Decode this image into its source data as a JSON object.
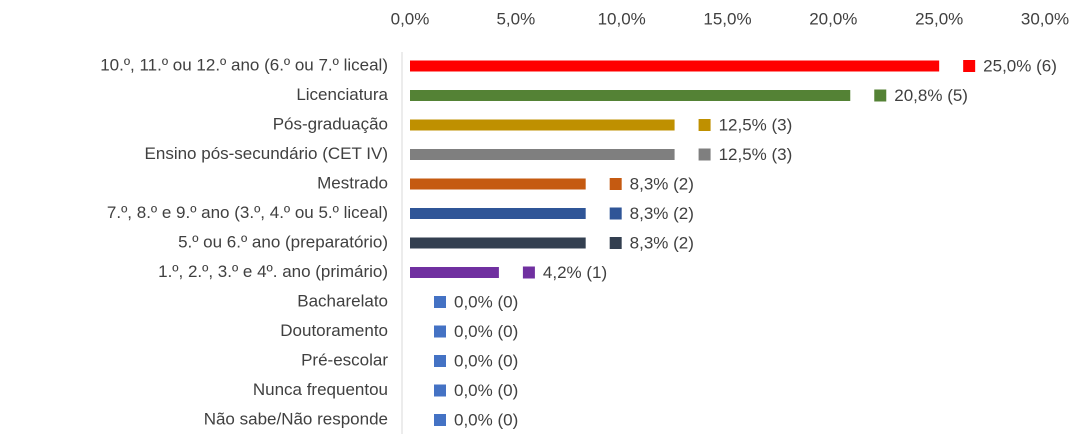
{
  "chart_data": {
    "type": "bar",
    "orientation": "horizontal",
    "categories": [
      "10.º, 11.º ou 12.º ano (6.º ou 7.º liceal)",
      "Licenciatura",
      "Pós-graduação",
      "Ensino pós-secundário (CET IV)",
      "Mestrado",
      "7.º, 8.º e 9.º ano (3.º, 4.º ou 5.º liceal)",
      "5.º ou 6.º ano (preparatório)",
      "1.º, 2.º, 3.º e 4º. ano (primário)",
      "Bacharelato",
      "Doutoramento",
      "Pré-escolar",
      "Nunca frequentou",
      "Não sabe/Não responde"
    ],
    "values": [
      25.0,
      20.8,
      12.5,
      12.5,
      8.3,
      8.3,
      8.3,
      4.2,
      0,
      0,
      0,
      0,
      0
    ],
    "value_labels": [
      "25,0% (6)",
      "20,8% (5)",
      "12,5% (3)",
      "12,5% (3)",
      "8,3% (2)",
      "8,3% (2)",
      "8,3% (2)",
      "4,2% (1)",
      "0,0% (0)",
      "0,0% (0)",
      "0,0% (0)",
      "0,0% (0)",
      "0,0% (0)"
    ],
    "colors": [
      "#ff0000",
      "#548235",
      "#bf9000",
      "#7f7f7f",
      "#c55a11",
      "#2f5597",
      "#333f50",
      "#7030a0",
      "#4472c4",
      "#4472c4",
      "#4472c4",
      "#4472c4",
      "#4472c4"
    ],
    "xlim": [
      0,
      30
    ],
    "xticks": [
      {
        "value": 0,
        "label": "0,0%"
      },
      {
        "value": 5,
        "label": "5,0%"
      },
      {
        "value": 10,
        "label": "10,0%"
      },
      {
        "value": 15,
        "label": "15,0%"
      },
      {
        "value": 20,
        "label": "20,0%"
      },
      {
        "value": 25,
        "label": "25,0%"
      },
      {
        "value": 30,
        "label": "30,0%"
      }
    ],
    "grid": false
  }
}
